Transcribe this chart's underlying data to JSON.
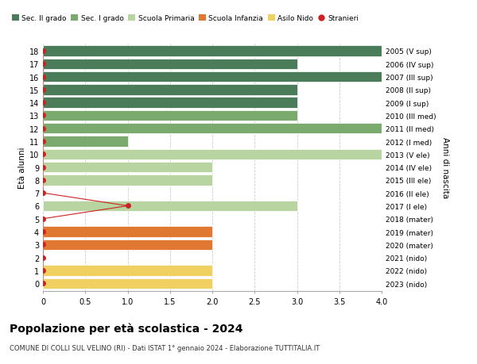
{
  "ages": [
    18,
    17,
    16,
    15,
    14,
    13,
    12,
    11,
    10,
    9,
    8,
    7,
    6,
    5,
    4,
    3,
    2,
    1,
    0
  ],
  "years_labels": [
    "2005 (V sup)",
    "2006 (IV sup)",
    "2007 (III sup)",
    "2008 (II sup)",
    "2009 (I sup)",
    "2010 (III med)",
    "2011 (II med)",
    "2012 (I med)",
    "2013 (V ele)",
    "2014 (IV ele)",
    "2015 (III ele)",
    "2016 (II ele)",
    "2017 (I ele)",
    "2018 (mater)",
    "2019 (mater)",
    "2020 (mater)",
    "2021 (nido)",
    "2022 (nido)",
    "2023 (nido)"
  ],
  "bar_values": [
    4,
    3,
    4,
    3,
    3,
    3,
    4,
    1,
    4,
    2,
    2,
    0,
    3,
    0,
    2,
    2,
    0,
    2,
    2
  ],
  "bar_colors": [
    "#4a7c59",
    "#4a7c59",
    "#4a7c59",
    "#4a7c59",
    "#4a7c59",
    "#7aaa6e",
    "#7aaa6e",
    "#7aaa6e",
    "#b8d4a0",
    "#b8d4a0",
    "#b8d4a0",
    "#b8d4a0",
    "#b8d4a0",
    "#e07832",
    "#e07832",
    "#e07832",
    "#f0d060",
    "#f0d060",
    "#f0d060"
  ],
  "stranieri_values": [
    0,
    0,
    0,
    0,
    0,
    0,
    0,
    0,
    0,
    0,
    0,
    0,
    1,
    0,
    0,
    0,
    0,
    0,
    0
  ],
  "stranieri_ages": [
    18,
    17,
    16,
    15,
    14,
    13,
    12,
    11,
    10,
    9,
    8,
    7,
    6,
    5,
    4,
    3,
    2,
    1,
    0
  ],
  "legend_labels": [
    "Sec. II grado",
    "Sec. I grado",
    "Scuola Primaria",
    "Scuola Infanzia",
    "Asilo Nido",
    "Stranieri"
  ],
  "legend_colors": [
    "#4a7c59",
    "#7aaa6e",
    "#b8d4a0",
    "#e07832",
    "#f0d060",
    "#cc2222"
  ],
  "title": "Popolazione per età scolastica - 2024",
  "subtitle": "COMUNE DI COLLI SUL VELINO (RI) - Dati ISTAT 1° gennaio 2024 - Elaborazione TUTTITALIA.IT",
  "ylabel_left": "Età alunni",
  "ylabel_right": "Anni di nascita",
  "xlim": [
    0,
    4.0
  ],
  "background_color": "#ffffff",
  "bar_edge_color": "#ffffff",
  "grid_color": "#cccccc",
  "stranieri_color": "#cc2222",
  "stranieri_dot_size": 25
}
